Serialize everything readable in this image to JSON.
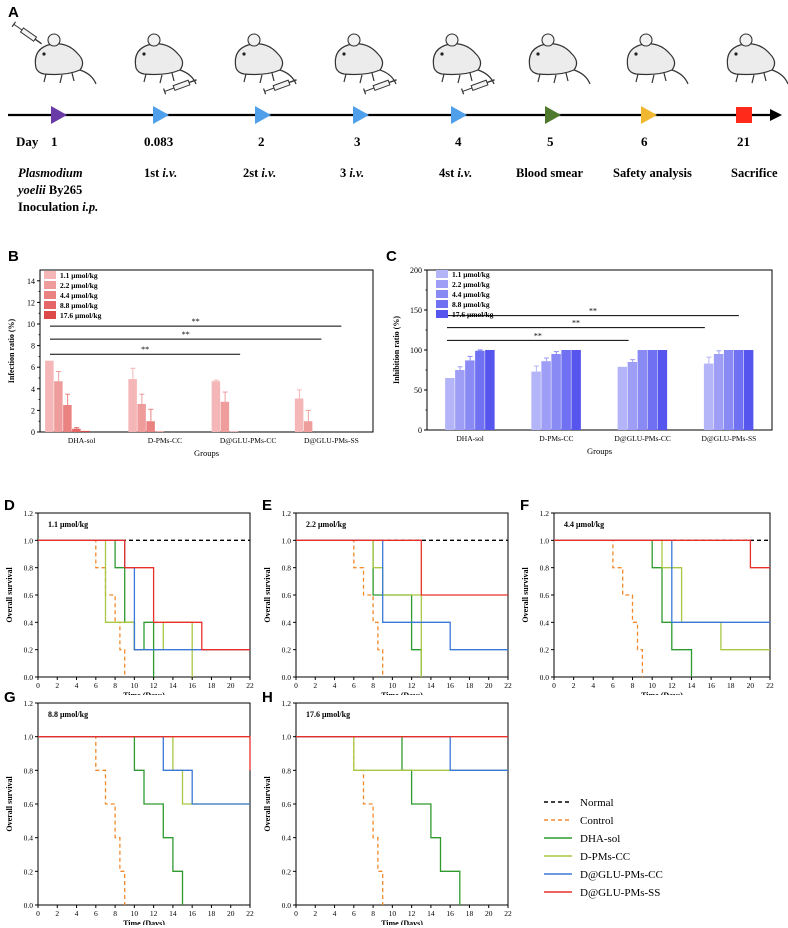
{
  "panels": {
    "A": "A",
    "B": "B",
    "C": "C",
    "D": "D",
    "E": "E",
    "F": "F",
    "G": "G",
    "H": "H"
  },
  "timeline": {
    "day_label": "Day",
    "days": [
      "1",
      "0.083",
      "2",
      "3",
      "4",
      "5",
      "6",
      "21"
    ],
    "steps": [
      {
        "line1a": "Plasmodium",
        "line2a": "yoelii",
        "line2b": " By265",
        "line3a": "Inoculation ",
        "line3b": "i.p."
      },
      {
        "a": "1st ",
        "b": "i.v."
      },
      {
        "a": "2st ",
        "b": "i.v."
      },
      {
        "a": "3 ",
        "b": "i.v."
      },
      {
        "a": "4st ",
        "b": "i.v."
      },
      {
        "a": "Blood smear",
        "b": ""
      },
      {
        "a": "Safety analysis",
        "b": ""
      },
      {
        "a": "Sacrifice",
        "b": ""
      }
    ],
    "marker_colors": [
      "#6a3aa6",
      "#4f9fea",
      "#4f9fea",
      "#4f9fea",
      "#4f9fea",
      "#4f7a2e",
      "#f0b830",
      "#ff2a1a"
    ]
  },
  "chart_data": [
    {
      "id": "B",
      "type": "bar",
      "ylabel": "Infection ratio (%)",
      "xlabel": "Groups",
      "ylim": [
        0,
        15
      ],
      "yticks": [
        "0",
        "2",
        "4",
        "6",
        "8",
        "10",
        "12",
        "14"
      ],
      "categories": [
        "DHA-sol",
        "D-PMs-CC",
        "D@GLU-PMs-CC",
        "D@GLU-PMs-SS"
      ],
      "series": [
        {
          "name": "1.1 μmol/kg",
          "color": "#f4b6b6",
          "values": [
            6.6,
            4.9,
            4.7,
            3.1
          ],
          "errors": [
            0.0,
            1.0,
            0.1,
            0.8
          ]
        },
        {
          "name": "2.2 μmol/kg",
          "color": "#ef9c9c",
          "values": [
            4.7,
            2.6,
            2.8,
            1.0
          ],
          "errors": [
            0.9,
            0.9,
            0.9,
            1.0
          ]
        },
        {
          "name": "4.4 μmol/kg",
          "color": "#ea8282",
          "values": [
            2.5,
            1.0,
            0.05,
            0
          ],
          "errors": [
            1.0,
            1.1,
            0.0,
            0
          ]
        },
        {
          "name": "8.8 μmol/kg",
          "color": "#e46666",
          "values": [
            0.3,
            0.05,
            0,
            0
          ],
          "errors": [
            0.1,
            0,
            0,
            0
          ]
        },
        {
          "name": "17.6 μmol/kg",
          "color": "#dd4848",
          "values": [
            0.1,
            0,
            0,
            0
          ],
          "errors": [
            0,
            0,
            0,
            0
          ]
        }
      ],
      "significance": [
        {
          "from": "DHA-sol",
          "to": "D@GLU-PMs-CC",
          "label": "**",
          "y": 7.2
        },
        {
          "from": "DHA-sol",
          "to": "D@GLU-PMs-SS",
          "label": "**",
          "y": 8.6
        },
        {
          "from": "DHA-sol",
          "to": "D@GLU-PMs-SS",
          "label": "**",
          "y": 9.8
        }
      ]
    },
    {
      "id": "C",
      "type": "bar",
      "ylabel": "Inhibition ratio (%)",
      "xlabel": "Groups",
      "ylim": [
        0,
        200
      ],
      "yticks": [
        "0",
        "50",
        "100",
        "150",
        "200"
      ],
      "categories": [
        "DHA-sol",
        "D-PMs-CC",
        "D@GLU-PMs-CC",
        "D@GLU-PMs-SS"
      ],
      "series": [
        {
          "name": "1.1 μmol/kg",
          "color": "#b4b4f8",
          "values": [
            65,
            73,
            79,
            83
          ],
          "errors": [
            0,
            7,
            0,
            8
          ]
        },
        {
          "name": "2.2 μmol/kg",
          "color": "#9e9ef6",
          "values": [
            75,
            86,
            85,
            95
          ],
          "errors": [
            4,
            4,
            3,
            4
          ]
        },
        {
          "name": "4.4 μmol/kg",
          "color": "#8a8af4",
          "values": [
            87,
            95,
            100,
            100
          ],
          "errors": [
            5,
            3,
            0,
            0
          ]
        },
        {
          "name": "8.8 μmol/kg",
          "color": "#7070f2",
          "values": [
            99,
            100,
            100,
            100
          ],
          "errors": [
            1,
            0,
            0,
            0
          ]
        },
        {
          "name": "17.6 μmol/kg",
          "color": "#5656ee",
          "values": [
            100,
            100,
            100,
            100
          ],
          "errors": [
            0,
            0,
            0,
            0
          ]
        }
      ],
      "significance": [
        {
          "from": "DHA-sol",
          "to": "D@GLU-PMs-CC",
          "label": "**",
          "y": 112
        },
        {
          "from": "DHA-sol",
          "to": "D@GLU-PMs-SS",
          "label": "**",
          "y": 128
        },
        {
          "from": "DHA-sol",
          "to": "D@GLU-PMs-SS",
          "label": "**",
          "y": 143
        }
      ]
    },
    {
      "id": "D",
      "type": "line",
      "title": "1.1 μmol/kg",
      "xlabel": "Time (Days)",
      "ylabel": "Overall survival",
      "xlim": [
        0,
        22
      ],
      "ylim": [
        0,
        1.2
      ],
      "series": [
        {
          "name": "Normal",
          "color": "#000000",
          "dash": true,
          "x": [
            0,
            22
          ],
          "y": [
            1,
            1
          ]
        },
        {
          "name": "Control",
          "color": "#f08a2c",
          "dash": true,
          "x": [
            0,
            6,
            6,
            7,
            7,
            8,
            8,
            8.5,
            8.5,
            9,
            9
          ],
          "y": [
            1,
            1,
            0.8,
            0.8,
            0.6,
            0.6,
            0.4,
            0.4,
            0.2,
            0.2,
            0
          ]
        },
        {
          "name": "DHA-sol",
          "color": "#2e9a2e",
          "dash": false,
          "x": [
            0,
            8,
            8,
            9,
            9,
            10,
            10,
            11,
            11,
            12,
            12
          ],
          "y": [
            1,
            1,
            0.8,
            0.8,
            0.4,
            0.4,
            0.2,
            0.2,
            0.4,
            0.4,
            0
          ]
        },
        {
          "name": "D-PMs-CC",
          "color": "#a8c844",
          "dash": false,
          "x": [
            0,
            7,
            7,
            10,
            10,
            13,
            13,
            16,
            16
          ],
          "y": [
            1,
            1,
            0.4,
            0.4,
            0.2,
            0.2,
            0.4,
            0.4,
            0
          ]
        },
        {
          "name": "D@GLU-PMs-CC",
          "color": "#3a78d8",
          "dash": false,
          "x": [
            0,
            9,
            9,
            10,
            10,
            22
          ],
          "y": [
            1,
            1,
            0.8,
            0.8,
            0.2,
            0.2
          ]
        },
        {
          "name": "D@GLU-PMs-SS",
          "color": "#e8302a",
          "dash": false,
          "x": [
            0,
            9,
            9,
            10,
            10,
            12,
            12,
            17,
            17,
            22
          ],
          "y": [
            1,
            1,
            0.8,
            0.8,
            0.8,
            0.8,
            0.4,
            0.4,
            0.2,
            0.2
          ]
        }
      ]
    },
    {
      "id": "E",
      "type": "line",
      "title": "2.2 μmol/kg",
      "xlabel": "Time (Days)",
      "ylabel": "Overall survival",
      "xlim": [
        0,
        22
      ],
      "ylim": [
        0,
        1.2
      ],
      "series": [
        {
          "name": "Normal",
          "color": "#000000",
          "dash": true,
          "x": [
            0,
            22
          ],
          "y": [
            1,
            1
          ]
        },
        {
          "name": "Control",
          "color": "#f08a2c",
          "dash": true,
          "x": [
            0,
            6,
            6,
            7,
            7,
            8,
            8,
            8.5,
            8.5,
            9,
            9
          ],
          "y": [
            1,
            1,
            0.8,
            0.8,
            0.6,
            0.6,
            0.4,
            0.4,
            0.2,
            0.2,
            0
          ]
        },
        {
          "name": "DHA-sol",
          "color": "#2e9a2e",
          "dash": false,
          "x": [
            0,
            8,
            8,
            12,
            12,
            13,
            13
          ],
          "y": [
            1,
            1,
            0.6,
            0.6,
            0.2,
            0.2,
            0
          ]
        },
        {
          "name": "D-PMs-CC",
          "color": "#a8c844",
          "dash": false,
          "x": [
            0,
            8,
            8,
            9,
            9,
            13,
            13
          ],
          "y": [
            1,
            1,
            0.8,
            0.8,
            0.6,
            0.6,
            0
          ]
        },
        {
          "name": "D@GLU-PMs-CC",
          "color": "#3a78d8",
          "dash": false,
          "x": [
            0,
            9,
            9,
            13,
            13,
            16,
            16,
            22
          ],
          "y": [
            1,
            1,
            0.4,
            0.4,
            0.4,
            0.4,
            0.2,
            0.2
          ]
        },
        {
          "name": "D@GLU-PMs-SS",
          "color": "#e8302a",
          "dash": false,
          "x": [
            0,
            13,
            13,
            22
          ],
          "y": [
            1,
            1,
            0.6,
            0.6
          ]
        }
      ]
    },
    {
      "id": "F",
      "type": "line",
      "title": "4.4 μmol/kg",
      "xlabel": "Time (Days)",
      "ylabel": "Overall survival",
      "xlim": [
        0,
        22
      ],
      "ylim": [
        0,
        1.2
      ],
      "series": [
        {
          "name": "Normal",
          "color": "#000000",
          "dash": true,
          "x": [
            0,
            22
          ],
          "y": [
            1,
            1
          ]
        },
        {
          "name": "Control",
          "color": "#f08a2c",
          "dash": true,
          "x": [
            0,
            6,
            6,
            7,
            7,
            8,
            8,
            8.5,
            8.5,
            9,
            9
          ],
          "y": [
            1,
            1,
            0.8,
            0.8,
            0.6,
            0.6,
            0.4,
            0.4,
            0.2,
            0.2,
            0
          ]
        },
        {
          "name": "DHA-sol",
          "color": "#2e9a2e",
          "dash": false,
          "x": [
            0,
            10,
            10,
            11,
            11,
            12,
            12,
            14,
            14
          ],
          "y": [
            1,
            1,
            0.8,
            0.8,
            0.4,
            0.4,
            0.2,
            0.2,
            0
          ]
        },
        {
          "name": "D-PMs-CC",
          "color": "#a8c844",
          "dash": false,
          "x": [
            0,
            11,
            11,
            13,
            13,
            17,
            17,
            22
          ],
          "y": [
            1,
            1,
            0.8,
            0.8,
            0.4,
            0.4,
            0.2,
            0.2
          ]
        },
        {
          "name": "D@GLU-PMs-CC",
          "color": "#3a78d8",
          "dash": false,
          "x": [
            0,
            12,
            12,
            22
          ],
          "y": [
            1,
            1,
            0.4,
            0.4
          ]
        },
        {
          "name": "D@GLU-PMs-SS",
          "color": "#e8302a",
          "dash": false,
          "x": [
            0,
            20,
            20,
            22
          ],
          "y": [
            1,
            1,
            0.8,
            0.8
          ]
        }
      ]
    },
    {
      "id": "G",
      "type": "line",
      "title": "8.8 μmol/kg",
      "xlabel": "Time (Days)",
      "ylabel": "Overall survival",
      "xlim": [
        0,
        22
      ],
      "ylim": [
        0,
        1.2
      ],
      "series": [
        {
          "name": "Control",
          "color": "#f08a2c",
          "dash": true,
          "x": [
            0,
            6,
            6,
            7,
            7,
            8,
            8,
            8.5,
            8.5,
            9,
            9
          ],
          "y": [
            1,
            1,
            0.8,
            0.8,
            0.6,
            0.6,
            0.4,
            0.4,
            0.2,
            0.2,
            0
          ]
        },
        {
          "name": "DHA-sol",
          "color": "#2e9a2e",
          "dash": false,
          "x": [
            0,
            10,
            10,
            11,
            11,
            13,
            13,
            14,
            14,
            15,
            15
          ],
          "y": [
            1,
            1,
            0.8,
            0.8,
            0.6,
            0.6,
            0.4,
            0.4,
            0.2,
            0.2,
            0
          ]
        },
        {
          "name": "D-PMs-CC",
          "color": "#a8c844",
          "dash": false,
          "x": [
            0,
            14,
            14,
            15,
            15,
            22
          ],
          "y": [
            1,
            1,
            0.8,
            0.8,
            0.6,
            0.6
          ]
        },
        {
          "name": "D@GLU-PMs-CC",
          "color": "#3a78d8",
          "dash": false,
          "x": [
            0,
            13,
            13,
            16,
            16,
            22
          ],
          "y": [
            1,
            1,
            0.8,
            0.8,
            0.6,
            0.6
          ]
        },
        {
          "name": "D@GLU-PMs-SS",
          "color": "#e8302a",
          "dash": false,
          "x": [
            0,
            22,
            22
          ],
          "y": [
            1,
            1,
            0.8
          ]
        }
      ]
    },
    {
      "id": "H",
      "type": "line",
      "title": "17.6 μmol/kg",
      "xlabel": "Time (Days)",
      "ylabel": "Overall survival",
      "xlim": [
        0,
        22
      ],
      "ylim": [
        0,
        1.2
      ],
      "series": [
        {
          "name": "Control",
          "color": "#f08a2c",
          "dash": true,
          "x": [
            0,
            6,
            6,
            7,
            7,
            8,
            8,
            8.5,
            8.5,
            9,
            9
          ],
          "y": [
            1,
            1,
            0.8,
            0.8,
            0.6,
            0.6,
            0.4,
            0.4,
            0.2,
            0.2,
            0
          ]
        },
        {
          "name": "DHA-sol",
          "color": "#2e9a2e",
          "dash": false,
          "x": [
            0,
            11,
            11,
            12,
            12,
            14,
            14,
            15,
            15,
            17,
            17
          ],
          "y": [
            1,
            1,
            0.8,
            0.8,
            0.6,
            0.6,
            0.4,
            0.4,
            0.2,
            0.2,
            0
          ]
        },
        {
          "name": "D-PMs-CC",
          "color": "#a8c844",
          "dash": false,
          "x": [
            0,
            6,
            6,
            22
          ],
          "y": [
            1,
            1,
            0.8,
            0.8
          ]
        },
        {
          "name": "D@GLU-PMs-CC",
          "color": "#3a78d8",
          "dash": false,
          "x": [
            0,
            16,
            16,
            22
          ],
          "y": [
            1,
            1,
            0.8,
            0.8
          ]
        },
        {
          "name": "D@GLU-PMs-SS",
          "color": "#e8302a",
          "dash": false,
          "x": [
            0,
            22
          ],
          "y": [
            1,
            1
          ]
        }
      ]
    }
  ],
  "survival_legend": [
    {
      "name": "Normal",
      "color": "#000000",
      "dash": true
    },
    {
      "name": "Control",
      "color": "#f08a2c",
      "dash": true
    },
    {
      "name": "DHA-sol",
      "color": "#2e9a2e",
      "dash": false
    },
    {
      "name": "D-PMs-CC",
      "color": "#a8c844",
      "dash": false
    },
    {
      "name": "D@GLU-PMs-CC",
      "color": "#3a78d8",
      "dash": false
    },
    {
      "name": "D@GLU-PMs-SS",
      "color": "#e8302a",
      "dash": false
    }
  ]
}
